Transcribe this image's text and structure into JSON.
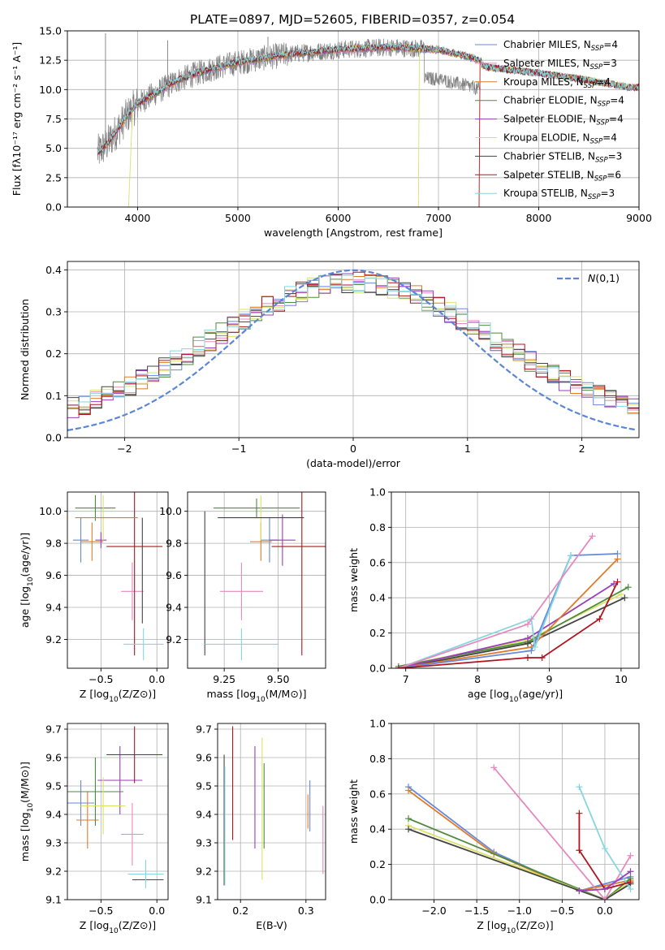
{
  "figure": {
    "title": "PLATE=0897, MJD=52605, FIBERID=0357, z=0.054"
  },
  "colors": {
    "Chabrier MILES": "#6688dd",
    "Salpeter MILES": "#e58ac0",
    "Kroupa MILES": "#e07b28",
    "Chabrier ELODIE": "#4e8a3e",
    "Salpeter ELODIE": "#9a3fb8",
    "Kroupa ELODIE": "#d9e36a",
    "Chabrier STELIB": "#444444",
    "Salpeter STELIB": "#b0151c",
    "Kroupa STELIB": "#86d6df",
    "data": "#808080",
    "gaussian": "#5b86d8",
    "grid": "#b0b0b0"
  },
  "legend_entries": [
    {
      "key": "Chabrier MILES",
      "label": "Chabrier MILES, N",
      "sub": "SSP",
      "val": "=4"
    },
    {
      "key": "Salpeter MILES",
      "label": "Salpeter MILES, N",
      "sub": "SSP",
      "val": "=3"
    },
    {
      "key": "Kroupa MILES",
      "label": "Kroupa MILES, N",
      "sub": "SSP",
      "val": "=4"
    },
    {
      "key": "Chabrier ELODIE",
      "label": "Chabrier ELODIE, N",
      "sub": "SSP",
      "val": "=4"
    },
    {
      "key": "Salpeter ELODIE",
      "label": "Salpeter ELODIE, N",
      "sub": "SSP",
      "val": "=4"
    },
    {
      "key": "Kroupa ELODIE",
      "label": "Kroupa ELODIE, N",
      "sub": "SSP",
      "val": "=4"
    },
    {
      "key": "Chabrier STELIB",
      "label": "Chabrier STELIB, N",
      "sub": "SSP",
      "val": "=3"
    },
    {
      "key": "Salpeter STELIB",
      "label": "Salpeter STELIB, N",
      "sub": "SSP",
      "val": "=6"
    },
    {
      "key": "Kroupa STELIB",
      "label": "Kroupa STELIB, N",
      "sub": "SSP",
      "val": "=3"
    }
  ],
  "chart_data": [
    {
      "id": "spectrum",
      "type": "line",
      "xlabel": "wavelength [Angstrom, rest frame]",
      "ylabel": "Flux [fλ10⁻¹⁷ erg cm⁻² s⁻¹ A⁻¹]",
      "xlim": [
        3300,
        9000
      ],
      "ylim": [
        0,
        15
      ],
      "xticks": [
        4000,
        5000,
        6000,
        7000,
        8000,
        9000
      ],
      "yticks": [
        0.0,
        2.5,
        5.0,
        7.5,
        10.0,
        12.5,
        15.0
      ],
      "continuum": {
        "x": [
          3600,
          3700,
          3800,
          3900,
          4000,
          4200,
          4400,
          4600,
          4800,
          5000,
          5200,
          5500,
          6000,
          6500,
          7000,
          7300,
          7500,
          8000,
          8500,
          8900
        ],
        "y": [
          4.6,
          5.4,
          6.6,
          7.8,
          8.8,
          9.8,
          10.8,
          11.4,
          11.9,
          12.3,
          12.6,
          13.0,
          13.4,
          13.6,
          13.4,
          12.8,
          12.3,
          11.8,
          11.2,
          10.6
        ]
      },
      "grid": true,
      "legend": "right"
    },
    {
      "id": "residual-histogram",
      "type": "line",
      "xlabel": "(data-model)/error",
      "ylabel": "Normed distribution",
      "xlim": [
        -2.5,
        2.5
      ],
      "ylim": [
        0,
        0.42
      ],
      "xticks": [
        -2,
        -1,
        0,
        1,
        2
      ],
      "yticks": [
        0.0,
        0.1,
        0.2,
        0.3,
        0.4
      ],
      "bin_width": 0.1,
      "gaussian_label": "N(0,1)",
      "grid": true,
      "legend": "top-right"
    },
    {
      "id": "age-vs-Z",
      "type": "scatter",
      "xlabel": "Z [log10(Z/Z⊙)]",
      "ylabel": "age  [log10(age/yr)]",
      "xlim": [
        -0.8,
        0.1
      ],
      "ylim": [
        9.02,
        10.12
      ],
      "xticks": [
        -0.5,
        0.0
      ],
      "yticks": [
        9.2,
        9.4,
        9.6,
        9.8,
        10.0
      ],
      "points": [
        {
          "key": "Chabrier MILES",
          "x": -0.68,
          "y": 9.82,
          "xerr": 0.07,
          "yerr": 0.14
        },
        {
          "key": "Salpeter MILES",
          "x": -0.22,
          "y": 9.5,
          "xerr": 0.1,
          "yerr": 0.18
        },
        {
          "key": "Kroupa MILES",
          "x": -0.58,
          "y": 9.81,
          "xerr": 0.1,
          "yerr": 0.12
        },
        {
          "key": "Chabrier ELODIE",
          "x": -0.55,
          "y": 10.02,
          "xerr": 0.18,
          "yerr": 0.08
        },
        {
          "key": "Salpeter ELODIE",
          "x": -0.5,
          "y": 9.82,
          "xerr": 0.05,
          "yerr": 0.05
        },
        {
          "key": "Kroupa ELODIE",
          "x": -0.48,
          "y": 9.96,
          "xerr": 0.04,
          "yerr": 0.14
        },
        {
          "key": "Chabrier STELIB",
          "x": -0.13,
          "y": 9.63,
          "xerr": 0.0,
          "yerr": 0.33
        },
        {
          "key": "Salpeter STELIB",
          "x": -0.2,
          "y": 9.78,
          "xerr": 0.25,
          "yerr": 0.68
        },
        {
          "key": "Kroupa STELIB",
          "x": -0.12,
          "y": 9.17,
          "xerr": 0.18,
          "yerr": 0.1
        }
      ],
      "extra": [
        {
          "key": "Kroupa MILES",
          "x": -0.45,
          "y": 9.96,
          "xerr": 0.28,
          "yerr": 0.0
        }
      ]
    },
    {
      "id": "age-vs-mass",
      "type": "scatter",
      "xlabel": "mass [log10(M/M⊙)]",
      "ylabel": "",
      "xlim": [
        9.08,
        9.72
      ],
      "ylim": [
        9.02,
        10.12
      ],
      "xticks": [
        9.25,
        9.5
      ],
      "yticks": [
        9.2,
        9.4,
        9.6,
        9.8,
        10.0
      ],
      "points": [
        {
          "key": "Chabrier MILES",
          "x": 9.46,
          "y": 9.82,
          "xerr": 0.04,
          "yerr": 0.14
        },
        {
          "key": "Salpeter MILES",
          "x": 9.33,
          "y": 9.5,
          "xerr": 0.1,
          "yerr": 0.18
        },
        {
          "key": "Kroupa MILES",
          "x": 9.42,
          "y": 9.81,
          "xerr": 0.05,
          "yerr": 0.12
        },
        {
          "key": "Chabrier ELODIE",
          "x": 9.4,
          "y": 10.02,
          "xerr": 0.2,
          "yerr": 0.06
        },
        {
          "key": "Salpeter ELODIE",
          "x": 9.52,
          "y": 9.82,
          "xerr": 0.06,
          "yerr": 0.16
        },
        {
          "key": "Kroupa ELODIE",
          "x": 9.42,
          "y": 9.96,
          "xerr": 0.05,
          "yerr": 0.14
        },
        {
          "key": "Chabrier STELIB",
          "x": 9.16,
          "y": 9.55,
          "xerr": 0.0,
          "yerr": 0.45
        },
        {
          "key": "Salpeter STELIB",
          "x": 9.61,
          "y": 9.78,
          "xerr": 0.14,
          "yerr": 0.68
        },
        {
          "key": "Kroupa STELIB",
          "x": 9.33,
          "y": 9.17,
          "xerr": 0.17,
          "yerr": 0.1
        }
      ],
      "extra": [
        {
          "key": "Chabrier STELIB",
          "x": 9.42,
          "y": 9.96,
          "xerr": 0.2,
          "yerr": 0.0
        }
      ]
    },
    {
      "id": "mass-weight-vs-age",
      "type": "line",
      "xlabel": "age  [log10(age/yr)]",
      "ylabel": "mass weight",
      "xlim": [
        6.8,
        10.25
      ],
      "ylim": [
        0,
        1.0
      ],
      "xticks": [
        7,
        8,
        9,
        10
      ],
      "yticks": [
        0.0,
        0.2,
        0.4,
        0.6,
        0.8,
        1.0
      ],
      "series": [
        {
          "key": "Kroupa ELODIE",
          "x": [
            6.9,
            8.7,
            10.0
          ],
          "y": [
            0.01,
            0.16,
            0.42
          ]
        },
        {
          "key": "Chabrier ELODIE",
          "x": [
            6.9,
            8.7,
            10.1
          ],
          "y": [
            0.01,
            0.15,
            0.46
          ]
        },
        {
          "key": "Chabrier STELIB",
          "x": [
            6.9,
            8.7,
            10.05
          ],
          "y": [
            0.0,
            0.14,
            0.4
          ]
        },
        {
          "key": "Salpeter ELODIE",
          "x": [
            6.9,
            8.7,
            9.9
          ],
          "y": [
            0.0,
            0.17,
            0.48
          ]
        },
        {
          "key": "Kroupa MILES",
          "x": [
            6.9,
            8.75,
            9.95
          ],
          "y": [
            0.0,
            0.12,
            0.62
          ]
        },
        {
          "key": "Chabrier MILES",
          "x": [
            6.9,
            8.75,
            9.3,
            9.95
          ],
          "y": [
            0.0,
            0.1,
            0.64,
            0.65
          ]
        },
        {
          "key": "Kroupa STELIB",
          "x": [
            6.9,
            8.75,
            8.8,
            9.3
          ],
          "y": [
            0.0,
            0.28,
            0.12,
            0.64
          ]
        },
        {
          "key": "Salpeter MILES",
          "x": [
            6.9,
            8.7,
            9.6
          ],
          "y": [
            0.0,
            0.25,
            0.75
          ]
        },
        {
          "key": "Salpeter STELIB",
          "x": [
            6.9,
            8.7,
            8.9,
            9.7,
            9.95
          ],
          "y": [
            0.0,
            0.06,
            0.06,
            0.28,
            0.49
          ]
        }
      ]
    },
    {
      "id": "mass-vs-Z",
      "type": "scatter",
      "xlabel": "Z [log10(Z/Z⊙)]",
      "ylabel": "mass [log10(M/M⊙)]",
      "xlim": [
        -0.8,
        0.1
      ],
      "ylim": [
        9.1,
        9.72
      ],
      "xticks": [
        -0.5,
        0.0
      ],
      "yticks": [
        9.1,
        9.2,
        9.3,
        9.4,
        9.5,
        9.6,
        9.7
      ],
      "points": [
        {
          "key": "Chabrier MILES",
          "x": -0.68,
          "y": 9.44,
          "xerr": 0.12,
          "yerr": 0.08
        },
        {
          "key": "Salpeter MILES",
          "x": -0.22,
          "y": 9.33,
          "xerr": 0.1,
          "yerr": 0.11
        },
        {
          "key": "Kroupa MILES",
          "x": -0.62,
          "y": 9.38,
          "xerr": 0.1,
          "yerr": 0.1
        },
        {
          "key": "Chabrier ELODIE",
          "x": -0.55,
          "y": 9.48,
          "xerr": 0.25,
          "yerr": 0.12
        },
        {
          "key": "Salpeter ELODIE",
          "x": -0.33,
          "y": 9.52,
          "xerr": 0.2,
          "yerr": 0.12
        },
        {
          "key": "Kroupa ELODIE",
          "x": -0.48,
          "y": 9.43,
          "xerr": 0.2,
          "yerr": 0.1
        },
        {
          "key": "Chabrier STELIB",
          "x": -0.08,
          "y": 9.17,
          "xerr": 0.14,
          "yerr": 0.0
        },
        {
          "key": "Salpeter STELIB",
          "x": -0.2,
          "y": 9.61,
          "xerr": 0.25,
          "yerr": 0.1
        },
        {
          "key": "Kroupa STELIB",
          "x": -0.1,
          "y": 9.19,
          "xerr": 0.16,
          "yerr": 0.05
        }
      ]
    },
    {
      "id": "mass-vs-EBV",
      "type": "scatter",
      "xlabel": "E(B-V)",
      "ylabel": "",
      "xlim": [
        0.165,
        0.33
      ],
      "ylim": [
        9.1,
        9.72
      ],
      "xticks": [
        0.2,
        0.3
      ],
      "yticks": [
        9.1,
        9.2,
        9.3,
        9.4,
        9.5,
        9.6,
        9.7
      ],
      "points": [
        {
          "key": "Chabrier MILES",
          "x": 0.306,
          "y": 9.43,
          "xerr": 0.0,
          "yerr": 0.09
        },
        {
          "key": "Salpeter MILES",
          "x": 0.326,
          "y": 9.31,
          "xerr": 0.0,
          "yerr": 0.12
        },
        {
          "key": "Kroupa MILES",
          "x": 0.303,
          "y": 9.41,
          "xerr": 0.0,
          "yerr": 0.06
        },
        {
          "key": "Chabrier ELODIE",
          "x": 0.236,
          "y": 9.43,
          "xerr": 0.0,
          "yerr": 0.15
        },
        {
          "key": "Salpeter ELODIE",
          "x": 0.222,
          "y": 9.46,
          "xerr": 0.0,
          "yerr": 0.18
        },
        {
          "key": "Kroupa ELODIE",
          "x": 0.233,
          "y": 9.42,
          "xerr": 0.0,
          "yerr": 0.25
        },
        {
          "key": "Chabrier STELIB",
          "x": 0.175,
          "y": 9.38,
          "xerr": 0.0,
          "yerr": 0.23
        },
        {
          "key": "Salpeter STELIB",
          "x": 0.188,
          "y": 9.51,
          "xerr": 0.0,
          "yerr": 0.2
        },
        {
          "key": "Kroupa STELIB",
          "x": 0.176,
          "y": 9.36,
          "xerr": 0.0,
          "yerr": 0.21
        }
      ]
    },
    {
      "id": "mass-weight-vs-Z",
      "type": "line",
      "xlabel": "Z [log10(Z/Z⊙)]",
      "ylabel": "mass weight",
      "xlim": [
        -2.5,
        0.4
      ],
      "ylim": [
        0,
        1.0
      ],
      "xticks": [
        -2.0,
        -1.5,
        -1.0,
        -0.5,
        0.0
      ],
      "yticks": [
        0.0,
        0.2,
        0.4,
        0.6,
        0.8,
        1.0
      ],
      "series": [
        {
          "key": "Chabrier MILES",
          "x": [
            -2.3,
            -1.3,
            -0.3,
            0.3
          ],
          "y": [
            0.64,
            0.27,
            0.05,
            0.13
          ]
        },
        {
          "key": "Kroupa MILES",
          "x": [
            -2.3,
            -1.3,
            -0.3,
            0.3
          ],
          "y": [
            0.62,
            0.26,
            0.05,
            0.11
          ]
        },
        {
          "key": "Chabrier ELODIE",
          "x": [
            -2.3,
            0.0,
            0.3
          ],
          "y": [
            0.46,
            0.0,
            0.12
          ]
        },
        {
          "key": "Kroupa ELODIE",
          "x": [
            -2.3,
            0.0,
            0.3
          ],
          "y": [
            0.42,
            0.0,
            0.1
          ]
        },
        {
          "key": "Chabrier STELIB",
          "x": [
            -2.3,
            0.0,
            0.3
          ],
          "y": [
            0.4,
            0.0,
            0.09
          ]
        },
        {
          "key": "Salpeter MILES",
          "x": [
            -1.3,
            0.0,
            0.3
          ],
          "y": [
            0.75,
            0.0,
            0.25
          ]
        },
        {
          "key": "Kroupa STELIB",
          "x": [
            -0.3,
            0.0,
            0.3
          ],
          "y": [
            0.64,
            0.29,
            0.06
          ]
        },
        {
          "key": "Salpeter STELIB",
          "x": [
            -0.3,
            -0.3,
            0.0,
            0.3
          ],
          "y": [
            0.49,
            0.28,
            0.06,
            0.1
          ]
        },
        {
          "key": "Salpeter ELODIE",
          "x": [
            -0.3,
            0.0,
            0.3
          ],
          "y": [
            0.05,
            0.06,
            0.16
          ]
        }
      ]
    }
  ]
}
